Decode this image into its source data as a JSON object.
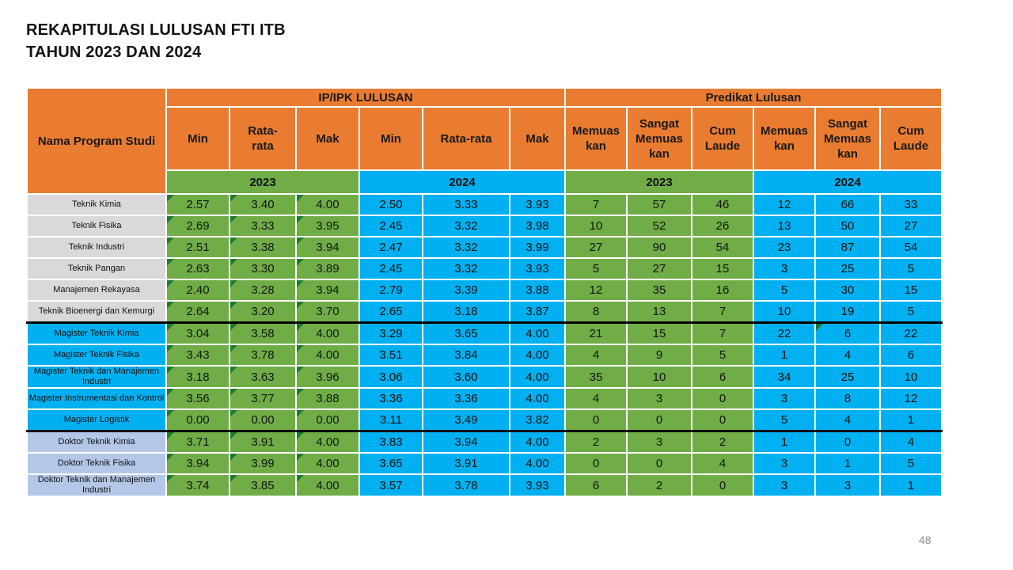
{
  "slide": {
    "title_line1": "REKAPITULASI LULUSAN FTI ITB",
    "title_line2": "TAHUN 2023 DAN 2024",
    "page_number": "48"
  },
  "colors": {
    "header_orange": "#E97C30",
    "green_2023": "#70AD47",
    "blue_2024": "#00B0F0",
    "sarjana_row_gray": "#D9D9D9",
    "magister_row_blue": "#00B0F0",
    "doktor_row_lavender": "#B4C7E7",
    "corner_flag_green": "#1E7B2E",
    "divider_black": "#000000",
    "page_number_gray": "#8C8C8C"
  },
  "table": {
    "header": {
      "name_col": "Nama Program Studi",
      "group_ip": "IP/IPK LULUSAN",
      "group_predikat": "Predikat Lulusan",
      "sub": [
        "Min",
        "Rata-\nrata",
        "Mak",
        "Min",
        "Rata-rata",
        "Mak",
        "Memuas\nkan",
        "Sangat\nMemuas\nkan",
        "Cum\nLaude",
        "Memuas\nkan",
        "Sangat\nMemuas\nkan",
        "Cum\nLaude"
      ],
      "years": [
        "2023",
        "2024",
        "2023",
        "2024"
      ]
    },
    "triangle_groups": [
      "ip2023"
    ],
    "special_triangles": [
      {
        "row": 6,
        "group": "p2024",
        "col": 1
      }
    ],
    "rows": [
      {
        "name": "Teknik Kimia",
        "tier": "s1",
        "ip2023": [
          "2.57",
          "3.40",
          "4.00"
        ],
        "ip2024": [
          "2.50",
          "3.33",
          "3.93"
        ],
        "p2023": [
          "7",
          "57",
          "46"
        ],
        "p2024": [
          "12",
          "66",
          "33"
        ]
      },
      {
        "name": "Teknik Fisika",
        "tier": "s1",
        "ip2023": [
          "2.69",
          "3.33",
          "3.95"
        ],
        "ip2024": [
          "2.45",
          "3.32",
          "3.98"
        ],
        "p2023": [
          "10",
          "52",
          "26"
        ],
        "p2024": [
          "13",
          "50",
          "27"
        ]
      },
      {
        "name": "Teknik Industri",
        "tier": "s1",
        "ip2023": [
          "2.51",
          "3.38",
          "3.94"
        ],
        "ip2024": [
          "2.47",
          "3.32",
          "3.99"
        ],
        "p2023": [
          "27",
          "90",
          "54"
        ],
        "p2024": [
          "23",
          "87",
          "54"
        ]
      },
      {
        "name": "Teknik Pangan",
        "tier": "s1",
        "ip2023": [
          "2.63",
          "3.30",
          "3.89"
        ],
        "ip2024": [
          "2.45",
          "3.32",
          "3.93"
        ],
        "p2023": [
          "5",
          "27",
          "15"
        ],
        "p2024": [
          "3",
          "25",
          "5"
        ]
      },
      {
        "name": "Manajemen Rekayasa",
        "tier": "s1",
        "ip2023": [
          "2.40",
          "3.28",
          "3.94"
        ],
        "ip2024": [
          "2.79",
          "3.39",
          "3.88"
        ],
        "p2023": [
          "12",
          "35",
          "16"
        ],
        "p2024": [
          "5",
          "30",
          "15"
        ]
      },
      {
        "name": "Teknik Bioenergi dan Kemurgi",
        "tier": "s1",
        "divider_after": true,
        "ip2023": [
          "2.64",
          "3.20",
          "3.70"
        ],
        "ip2024": [
          "2.65",
          "3.18",
          "3.87"
        ],
        "p2023": [
          "8",
          "13",
          "7"
        ],
        "p2024": [
          "10",
          "19",
          "5"
        ]
      },
      {
        "name": "Magister Teknik Kimia",
        "tier": "s2",
        "ip2023": [
          "3.04",
          "3.58",
          "4.00"
        ],
        "ip2024": [
          "3.29",
          "3.65",
          "4.00"
        ],
        "p2023": [
          "21",
          "15",
          "7"
        ],
        "p2024": [
          "22",
          "6",
          "22"
        ]
      },
      {
        "name": "Magister Teknik Fisika",
        "tier": "s2",
        "ip2023": [
          "3.43",
          "3.78",
          "4.00"
        ],
        "ip2024": [
          "3.51",
          "3.84",
          "4.00"
        ],
        "p2023": [
          "4",
          "9",
          "5"
        ],
        "p2024": [
          "1",
          "4",
          "6"
        ]
      },
      {
        "name": "Magister Teknik dan Manajemen Industri",
        "tier": "s2",
        "ip2023": [
          "3.18",
          "3.63",
          "3.96"
        ],
        "ip2024": [
          "3.06",
          "3.60",
          "4.00"
        ],
        "p2023": [
          "35",
          "10",
          "6"
        ],
        "p2024": [
          "34",
          "25",
          "10"
        ]
      },
      {
        "name": "Magister Instrumentasi dan Kontrol",
        "tier": "s2",
        "ip2023": [
          "3.56",
          "3.77",
          "3.88"
        ],
        "ip2024": [
          "3.36",
          "3.36",
          "4.00"
        ],
        "p2023": [
          "4",
          "3",
          "0"
        ],
        "p2024": [
          "3",
          "8",
          "12"
        ]
      },
      {
        "name": "Magister Logistik",
        "tier": "s2",
        "divider_after": true,
        "ip2023": [
          "0.00",
          "0.00",
          "0.00"
        ],
        "ip2024": [
          "3.11",
          "3.49",
          "3.82"
        ],
        "p2023": [
          "0",
          "0",
          "0"
        ],
        "p2024": [
          "5",
          "4",
          "1"
        ]
      },
      {
        "name": "Doktor Teknik Kimia",
        "tier": "s3",
        "ip2023": [
          "3.71",
          "3.91",
          "4.00"
        ],
        "ip2024": [
          "3.83",
          "3.94",
          "4.00"
        ],
        "p2023": [
          "2",
          "3",
          "2"
        ],
        "p2024": [
          "1",
          "0",
          "4"
        ]
      },
      {
        "name": "Doktor Teknik Fisika",
        "tier": "s3",
        "ip2023": [
          "3.94",
          "3.99",
          "4.00"
        ],
        "ip2024": [
          "3.65",
          "3.91",
          "4.00"
        ],
        "p2023": [
          "0",
          "0",
          "4"
        ],
        "p2024": [
          "3",
          "1",
          "5"
        ]
      },
      {
        "name": "Doktor Teknik dan Manajemen Industri",
        "tier": "s3",
        "ip2023": [
          "3.74",
          "3.85",
          "4.00"
        ],
        "ip2024": [
          "3.57",
          "3.78",
          "3.93"
        ],
        "p2023": [
          "6",
          "2",
          "0"
        ],
        "p2024": [
          "3",
          "3",
          "1"
        ]
      }
    ]
  }
}
